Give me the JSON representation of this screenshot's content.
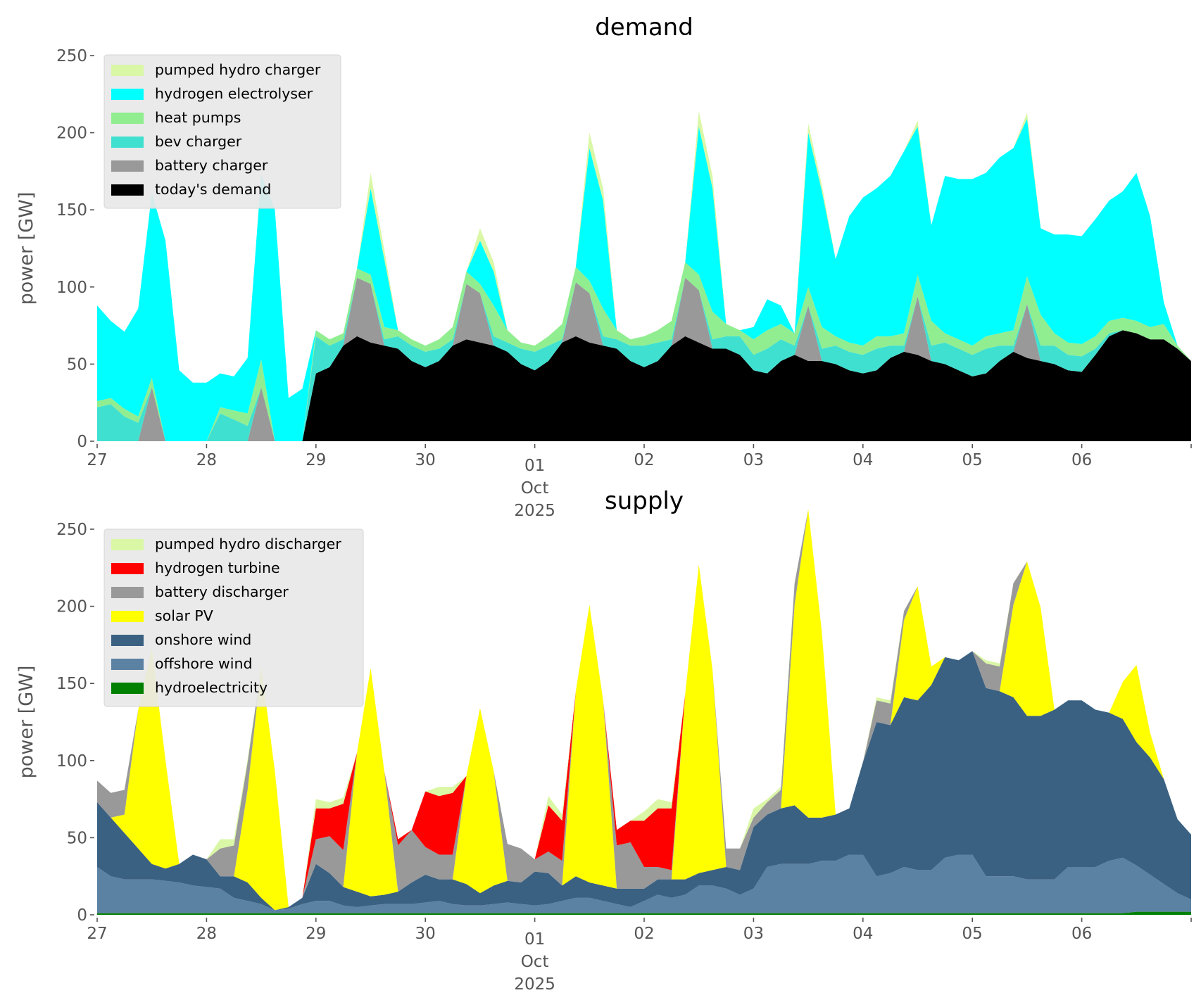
{
  "chart_data": [
    {
      "type": "area",
      "stacked": true,
      "title": "demand",
      "xlabel": "",
      "ylabel": "power [GW]",
      "ylim": [
        0,
        250
      ],
      "yticks": [
        0,
        50,
        100,
        150,
        200,
        250
      ],
      "x_start": "2025-09-27T00:00",
      "x_end": "2025-10-07T00:00",
      "x_step_hours": 3,
      "xtick_labels": [
        "27",
        "28",
        "29",
        "30",
        "01",
        "02",
        "03",
        "04",
        "05",
        "06"
      ],
      "xtick_sublabel": {
        "under": "01",
        "lines": [
          "Oct",
          "2025"
        ]
      },
      "grid": false,
      "legend_position": "top-left",
      "series": [
        {
          "name": "today's demand",
          "color": "#000000",
          "values": [
            0,
            0,
            0,
            0,
            0,
            0,
            0,
            0,
            0,
            0,
            0,
            0,
            0,
            0,
            0,
            0,
            44,
            48,
            62,
            68,
            64,
            62,
            60,
            52,
            48,
            52,
            62,
            66,
            64,
            62,
            58,
            50,
            46,
            52,
            64,
            68,
            64,
            62,
            60,
            52,
            48,
            52,
            62,
            68,
            64,
            60,
            60,
            56,
            46,
            44,
            52,
            56,
            52,
            52,
            50,
            46,
            44,
            46,
            54,
            58,
            56,
            52,
            50,
            46,
            42,
            44,
            52,
            58,
            54,
            52,
            50,
            46,
            45,
            56,
            68,
            72,
            70,
            66,
            66,
            60,
            52
          ]
        },
        {
          "name": "battery charger",
          "color": "#999999",
          "values": [
            0,
            0,
            0,
            0,
            35,
            0,
            0,
            0,
            0,
            0,
            0,
            0,
            35,
            0,
            0,
            0,
            0,
            0,
            0,
            38,
            38,
            0,
            0,
            0,
            0,
            0,
            0,
            36,
            32,
            0,
            0,
            0,
            0,
            0,
            0,
            35,
            32,
            0,
            0,
            0,
            0,
            0,
            0,
            38,
            34,
            0,
            0,
            0,
            0,
            0,
            0,
            0,
            36,
            0,
            0,
            0,
            0,
            0,
            0,
            0,
            38,
            0,
            0,
            0,
            0,
            0,
            0,
            0,
            35,
            0,
            0,
            0,
            0,
            0,
            0,
            0,
            0,
            0,
            0,
            0,
            0
          ]
        },
        {
          "name": "bev charger",
          "color": "#40E0D0",
          "values": [
            22,
            24,
            16,
            12,
            0,
            0,
            0,
            0,
            0,
            18,
            14,
            10,
            0,
            0,
            0,
            0,
            24,
            14,
            4,
            0,
            0,
            4,
            8,
            10,
            10,
            8,
            4,
            0,
            0,
            6,
            6,
            10,
            12,
            10,
            2,
            0,
            0,
            6,
            6,
            10,
            14,
            12,
            4,
            0,
            0,
            6,
            8,
            12,
            10,
            16,
            14,
            6,
            0,
            8,
            12,
            12,
            12,
            14,
            8,
            4,
            0,
            10,
            14,
            14,
            14,
            16,
            10,
            4,
            0,
            10,
            12,
            10,
            10,
            4,
            2,
            0,
            0,
            0,
            0,
            0,
            0
          ]
        },
        {
          "name": "heat pumps",
          "color": "#90EE90",
          "values": [
            4,
            4,
            5,
            4,
            6,
            0,
            0,
            0,
            0,
            4,
            6,
            8,
            18,
            0,
            0,
            0,
            4,
            4,
            4,
            6,
            6,
            8,
            4,
            4,
            4,
            6,
            8,
            8,
            6,
            20,
            8,
            4,
            4,
            6,
            10,
            10,
            8,
            18,
            6,
            4,
            6,
            8,
            12,
            10,
            10,
            18,
            8,
            4,
            10,
            12,
            10,
            8,
            12,
            14,
            6,
            6,
            6,
            8,
            6,
            8,
            14,
            16,
            6,
            6,
            6,
            8,
            8,
            10,
            18,
            20,
            8,
            8,
            8,
            8,
            8,
            8,
            8,
            8,
            10,
            2,
            0
          ]
        },
        {
          "name": "hydrogen electrolyser",
          "color": "#00FFFF",
          "values": [
            62,
            50,
            50,
            70,
            120,
            130,
            46,
            38,
            38,
            22,
            22,
            36,
            120,
            150,
            28,
            34,
            0,
            0,
            0,
            0,
            56,
            44,
            0,
            0,
            0,
            0,
            0,
            0,
            28,
            22,
            0,
            0,
            0,
            0,
            0,
            0,
            86,
            70,
            0,
            0,
            0,
            0,
            0,
            0,
            96,
            80,
            0,
            0,
            8,
            20,
            12,
            0,
            100,
            88,
            50,
            82,
            96,
            96,
            104,
            118,
            96,
            62,
            102,
            104,
            108,
            106,
            114,
            118,
            102,
            56,
            64,
            70,
            70,
            76,
            78,
            82,
            96,
            72,
            14,
            0,
            0
          ]
        },
        {
          "name": "pumped hydro charger",
          "color": "#DAF7A6",
          "values": [
            0,
            0,
            0,
            0,
            0,
            0,
            0,
            0,
            0,
            0,
            0,
            0,
            0,
            0,
            0,
            0,
            0,
            0,
            0,
            0,
            10,
            6,
            0,
            0,
            0,
            0,
            0,
            0,
            8,
            6,
            0,
            0,
            0,
            0,
            0,
            0,
            10,
            8,
            0,
            0,
            0,
            0,
            0,
            0,
            10,
            8,
            0,
            0,
            0,
            0,
            0,
            0,
            6,
            4,
            0,
            0,
            0,
            0,
            0,
            0,
            4,
            0,
            0,
            0,
            0,
            0,
            0,
            0,
            4,
            0,
            0,
            0,
            0,
            0,
            0,
            0,
            0,
            0,
            0,
            0,
            0
          ]
        }
      ]
    },
    {
      "type": "area",
      "stacked": true,
      "title": "supply",
      "xlabel": "",
      "ylabel": "power [GW]",
      "ylim": [
        0,
        250
      ],
      "yticks": [
        0,
        50,
        100,
        150,
        200,
        250
      ],
      "x_start": "2025-09-27T00:00",
      "x_end": "2025-10-07T00:00",
      "x_step_hours": 3,
      "xtick_labels": [
        "27",
        "28",
        "29",
        "30",
        "01",
        "02",
        "03",
        "04",
        "05",
        "06"
      ],
      "xtick_sublabel": {
        "under": "01",
        "lines": [
          "Oct",
          "2025"
        ]
      },
      "grid": false,
      "legend_position": "top-left",
      "series": [
        {
          "name": "hydroelectricity",
          "color": "#008000",
          "values": [
            1,
            1,
            1,
            1,
            1,
            1,
            1,
            1,
            1,
            1,
            1,
            1,
            1,
            1,
            1,
            1,
            1,
            1,
            1,
            1,
            1,
            1,
            1,
            1,
            1,
            1,
            1,
            1,
            1,
            1,
            1,
            1,
            1,
            1,
            1,
            1,
            1,
            1,
            1,
            1,
            1,
            1,
            1,
            1,
            1,
            1,
            1,
            1,
            1,
            1,
            1,
            1,
            1,
            1,
            1,
            1,
            1,
            1,
            1,
            1,
            1,
            1,
            1,
            1,
            1,
            1,
            1,
            1,
            1,
            1,
            1,
            1,
            1,
            1,
            1,
            1,
            2,
            2,
            2,
            2,
            2
          ]
        },
        {
          "name": "offshore wind",
          "color": "#5B81A3",
          "values": [
            30,
            24,
            22,
            22,
            22,
            21,
            20,
            18,
            17,
            16,
            10,
            8,
            6,
            2,
            3,
            6,
            8,
            8,
            5,
            4,
            5,
            6,
            6,
            6,
            7,
            8,
            6,
            5,
            5,
            6,
            7,
            6,
            5,
            6,
            8,
            10,
            10,
            8,
            6,
            4,
            8,
            12,
            10,
            12,
            18,
            18,
            16,
            12,
            16,
            30,
            32,
            32,
            32,
            34,
            34,
            38,
            38,
            24,
            26,
            30,
            28,
            28,
            36,
            38,
            38,
            24,
            24,
            24,
            22,
            22,
            22,
            30,
            30,
            30,
            34,
            36,
            30,
            24,
            18,
            12,
            8
          ]
        },
        {
          "name": "onshore wind",
          "color": "#3B6182",
          "values": [
            42,
            38,
            30,
            20,
            10,
            8,
            12,
            20,
            18,
            8,
            14,
            12,
            4,
            0,
            1,
            4,
            24,
            18,
            12,
            10,
            6,
            6,
            8,
            14,
            18,
            14,
            16,
            14,
            8,
            12,
            14,
            14,
            22,
            20,
            10,
            14,
            10,
            10,
            10,
            12,
            8,
            10,
            12,
            10,
            8,
            10,
            14,
            16,
            40,
            34,
            36,
            38,
            30,
            28,
            30,
            30,
            60,
            100,
            96,
            110,
            110,
            120,
            130,
            126,
            132,
            122,
            120,
            116,
            106,
            106,
            110,
            108,
            108,
            102,
            96,
            90,
            80,
            76,
            68,
            48,
            42
          ]
        },
        {
          "name": "solar PV",
          "color": "#FFFF00",
          "values": [
            0,
            0,
            12,
            90,
            140,
            70,
            0,
            0,
            0,
            0,
            0,
            60,
            150,
            90,
            0,
            0,
            0,
            0,
            0,
            90,
            148,
            80,
            0,
            0,
            0,
            0,
            0,
            70,
            120,
            74,
            0,
            0,
            0,
            0,
            0,
            120,
            180,
            120,
            0,
            0,
            0,
            0,
            0,
            120,
            200,
            130,
            0,
            0,
            0,
            0,
            0,
            130,
            200,
            120,
            0,
            0,
            0,
            0,
            0,
            50,
            74,
            12,
            0,
            0,
            0,
            0,
            0,
            60,
            100,
            70,
            0,
            0,
            0,
            0,
            0,
            24,
            50,
            16,
            0,
            0,
            0
          ]
        },
        {
          "name": "battery discharger",
          "color": "#999999",
          "values": [
            14,
            16,
            16,
            0,
            0,
            0,
            0,
            0,
            0,
            18,
            20,
            18,
            0,
            0,
            0,
            0,
            16,
            24,
            24,
            0,
            0,
            0,
            30,
            34,
            18,
            16,
            16,
            0,
            0,
            0,
            24,
            22,
            8,
            14,
            16,
            0,
            0,
            0,
            28,
            30,
            14,
            8,
            6,
            0,
            0,
            0,
            12,
            14,
            6,
            8,
            12,
            14,
            0,
            0,
            0,
            0,
            0,
            14,
            14,
            6,
            0,
            0,
            0,
            0,
            0,
            16,
            16,
            14,
            0,
            0,
            0,
            0,
            0,
            0,
            0,
            0,
            0,
            0,
            0,
            0,
            0
          ]
        },
        {
          "name": "hydrogen turbine",
          "color": "#FF0000",
          "values": [
            0,
            0,
            0,
            0,
            0,
            0,
            0,
            0,
            0,
            0,
            0,
            0,
            0,
            0,
            0,
            0,
            20,
            18,
            30,
            0,
            0,
            0,
            4,
            0,
            36,
            38,
            40,
            0,
            0,
            0,
            0,
            0,
            0,
            30,
            26,
            0,
            0,
            0,
            10,
            14,
            30,
            38,
            40,
            0,
            0,
            0,
            0,
            0,
            0,
            0,
            0,
            0,
            0,
            0,
            0,
            0,
            0,
            0,
            0,
            0,
            0,
            0,
            0,
            0,
            0,
            0,
            0,
            0,
            0,
            0,
            0,
            0,
            0,
            0,
            0,
            0,
            0,
            0,
            0,
            0,
            0
          ]
        },
        {
          "name": "pumped hydro discharger",
          "color": "#DAF7A6",
          "values": [
            0,
            0,
            0,
            0,
            0,
            0,
            0,
            0,
            0,
            6,
            4,
            2,
            0,
            0,
            0,
            0,
            6,
            4,
            4,
            0,
            0,
            0,
            0,
            0,
            0,
            6,
            4,
            0,
            0,
            0,
            0,
            0,
            0,
            6,
            4,
            0,
            0,
            0,
            0,
            0,
            6,
            6,
            4,
            0,
            0,
            0,
            0,
            0,
            6,
            2,
            2,
            0,
            0,
            0,
            0,
            0,
            0,
            2,
            2,
            0,
            0,
            0,
            0,
            0,
            0,
            2,
            2,
            0,
            0,
            0,
            0,
            0,
            0,
            0,
            0,
            0,
            0,
            0,
            0,
            0,
            0
          ]
        }
      ]
    }
  ]
}
